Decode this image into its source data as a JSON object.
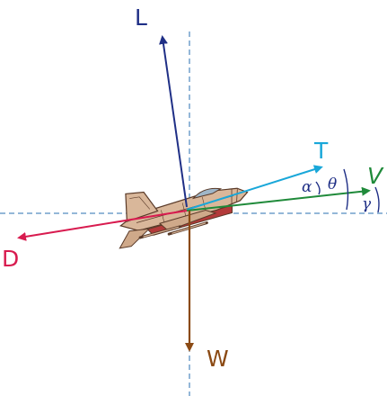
{
  "forces": {
    "lift": {
      "label": "L",
      "color": "#1f2f86"
    },
    "thrust": {
      "label": "T",
      "color": "#19a7d9"
    },
    "velocity": {
      "label": "V",
      "color": "#1f8a3a"
    },
    "drag": {
      "label": "D",
      "color": "#d81b4f"
    },
    "weight": {
      "label": "W",
      "color": "#8b4a14"
    }
  },
  "angles": {
    "alpha": "α",
    "theta": "θ",
    "gamma": "γ"
  },
  "colors": {
    "reference_lines": "#2a6fb0",
    "aircraft_body": "#d9b79a",
    "aircraft_outline": "#5a3a28",
    "aircraft_underside": "#b33a3a"
  },
  "icons": {
    "aircraft": "fighter-jet-icon"
  }
}
